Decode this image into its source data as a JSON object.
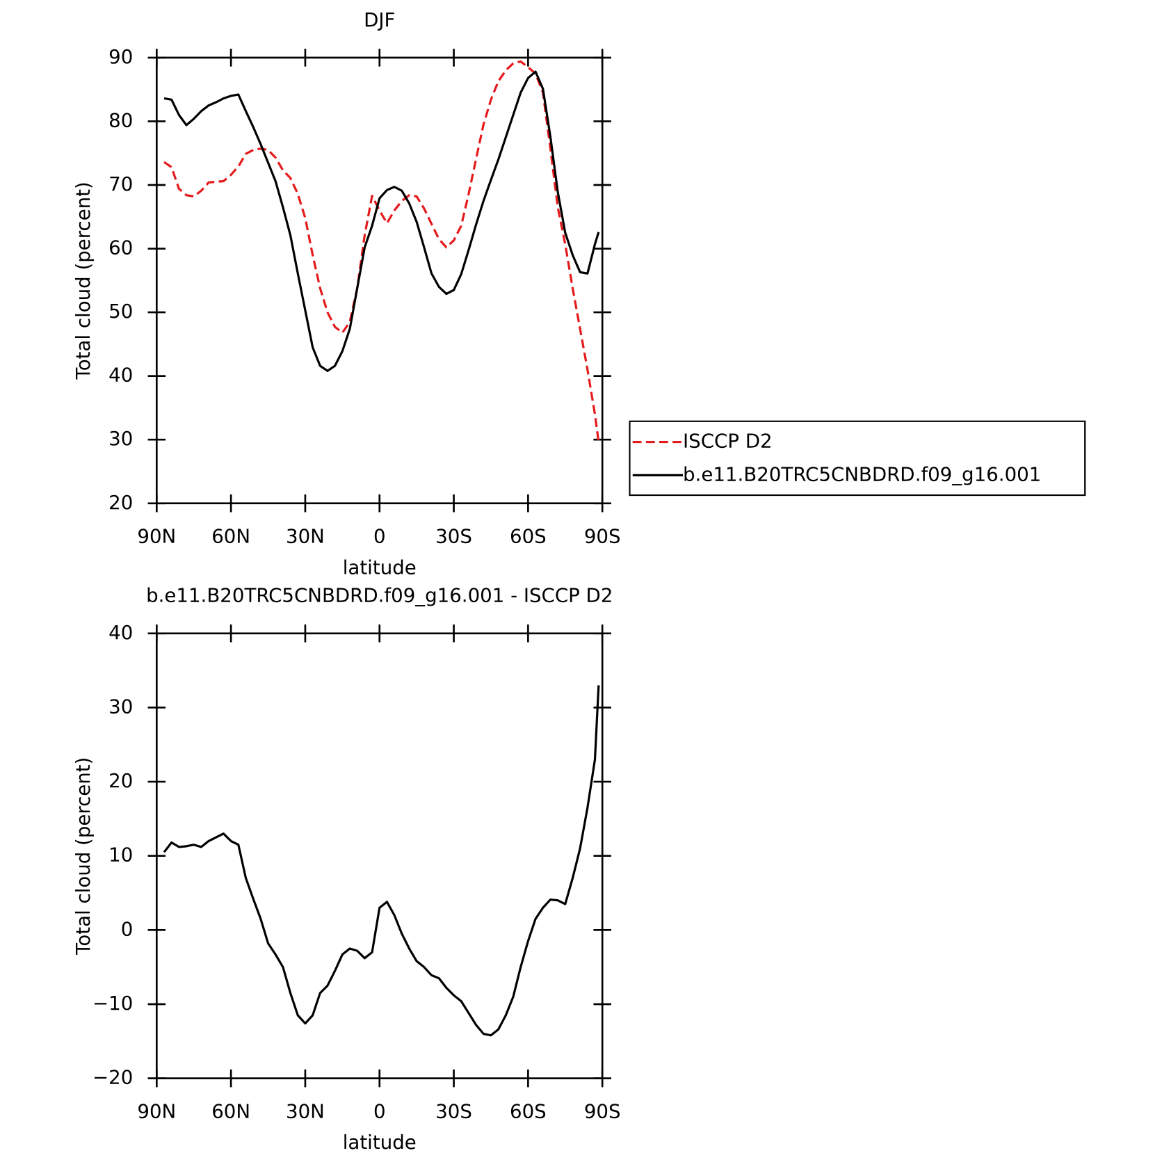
{
  "chart_data": [
    {
      "type": "line",
      "title": "DJF",
      "xlabel": "latitude",
      "ylabel": "Total cloud (percent)",
      "x": [
        87,
        84,
        81,
        78,
        75,
        72,
        69,
        66,
        63,
        60,
        57,
        54,
        51,
        48,
        45,
        42,
        39,
        36,
        33,
        30,
        27,
        24,
        21,
        18,
        15,
        12,
        9,
        6,
        3,
        0,
        -3,
        -6,
        -9,
        -12,
        -15,
        -18,
        -21,
        -24,
        -27,
        -30,
        -33,
        -36,
        -39,
        -42,
        -45,
        -48,
        -51,
        -54,
        -57,
        -60,
        -63,
        -66,
        -69,
        -72,
        -75,
        -78,
        -81,
        -84,
        -87,
        -88.5
      ],
      "xlim": [
        90,
        -90
      ],
      "xticks": [
        {
          "value": 90,
          "label": "90N"
        },
        {
          "value": 60,
          "label": "60N"
        },
        {
          "value": 30,
          "label": "30N"
        },
        0,
        {
          "value": -30,
          "label": "30S"
        },
        {
          "value": -60,
          "label": "60S"
        },
        {
          "value": -90,
          "label": "90S"
        }
      ],
      "ylim": [
        20,
        90
      ],
      "yticks": [
        20,
        30,
        40,
        50,
        60,
        70,
        80,
        90
      ],
      "series": [
        {
          "name": "ISCCP D2",
          "color": "#e41a1c",
          "dashed": true,
          "values": [
            73.6,
            72.8,
            69.4,
            68.4,
            68.2,
            69.1,
            70.4,
            70.5,
            70.6,
            71.6,
            72.9,
            74.9,
            75.5,
            75.7,
            75.5,
            74.3,
            72.3,
            71.1,
            68.6,
            64.8,
            59.0,
            53.8,
            50.0,
            47.7,
            46.8,
            48.5,
            53.8,
            62.1,
            68.3,
            66.0,
            64.0,
            66.0,
            67.5,
            68.4,
            68.2,
            66.3,
            63.9,
            61.5,
            60.2,
            61.3,
            63.6,
            68.6,
            74.1,
            79.5,
            83.4,
            86.3,
            88.0,
            89.1,
            89.4,
            88.5,
            87.5,
            84.5,
            75.8,
            66.5,
            60.7,
            53.8,
            47.4,
            41.0,
            34.0,
            29.6
          ]
        },
        {
          "name": "b.e11.B20TRC5CNBDRD.f09_g16.001",
          "color": "#000000",
          "dashed": false,
          "values": [
            83.6,
            83.4,
            81.0,
            79.4,
            80.4,
            81.6,
            82.5,
            83.0,
            83.6,
            84.0,
            84.2,
            81.6,
            79.1,
            76.4,
            73.5,
            70.6,
            66.5,
            62.1,
            56.1,
            50.3,
            44.5,
            41.6,
            40.8,
            41.6,
            43.9,
            47.4,
            53.8,
            60.2,
            63.6,
            67.9,
            69.2,
            69.7,
            69.1,
            67.1,
            64.2,
            60.2,
            56.1,
            54.0,
            52.9,
            53.5,
            56.0,
            59.8,
            63.8,
            67.5,
            70.8,
            74.0,
            77.5,
            81.0,
            84.5,
            86.8,
            87.8,
            85.1,
            77.6,
            68.9,
            62.5,
            59.0,
            56.3,
            56.1,
            60.7,
            62.6
          ]
        }
      ]
    },
    {
      "type": "line",
      "title": "b.e11.B20TRC5CNBDRD.f09_g16.001 - ISCCP D2",
      "xlabel": "latitude",
      "ylabel": "Total cloud (percent)",
      "x": [
        87,
        84,
        81,
        78,
        75,
        72,
        69,
        66,
        63,
        60,
        57,
        54,
        51,
        48,
        45,
        42,
        39,
        36,
        33,
        30,
        27,
        24,
        21,
        18,
        15,
        12,
        9,
        6,
        3,
        0,
        -3,
        -6,
        -9,
        -12,
        -15,
        -18,
        -21,
        -24,
        -27,
        -30,
        -33,
        -36,
        -39,
        -42,
        -45,
        -48,
        -51,
        -54,
        -57,
        -60,
        -63,
        -66,
        -69,
        -72,
        -75,
        -78,
        -81,
        -84,
        -87,
        -88.5
      ],
      "xlim": [
        90,
        -90
      ],
      "xticks": [
        {
          "value": 90,
          "label": "90N"
        },
        {
          "value": 60,
          "label": "60N"
        },
        {
          "value": 30,
          "label": "30N"
        },
        0,
        {
          "value": -30,
          "label": "30S"
        },
        {
          "value": -60,
          "label": "60S"
        },
        {
          "value": -90,
          "label": "90S"
        }
      ],
      "ylim": [
        -20,
        40
      ],
      "yticks": [
        {
          "value": -20,
          "label": "−20"
        },
        {
          "value": -10,
          "label": "−10"
        },
        0,
        10,
        20,
        30,
        40
      ],
      "series": [
        {
          "color": "#000000",
          "dashed": false,
          "values": [
            10.5,
            11.8,
            11.2,
            11.3,
            11.5,
            11.2,
            12.0,
            12.5,
            13.0,
            12.0,
            11.5,
            7.0,
            4.2,
            1.5,
            -1.8,
            -3.3,
            -5.0,
            -8.5,
            -11.5,
            -12.6,
            -11.5,
            -8.5,
            -7.5,
            -5.5,
            -3.3,
            -2.5,
            -2.8,
            -3.8,
            -3.0,
            3.0,
            3.8,
            2.0,
            -0.5,
            -2.5,
            -4.2,
            -5.0,
            -6.1,
            -6.5,
            -7.8,
            -8.8,
            -9.6,
            -11.2,
            -12.8,
            -14.0,
            -14.2,
            -13.4,
            -11.5,
            -9.0,
            -5.0,
            -1.5,
            1.5,
            3.0,
            4.1,
            4.0,
            3.5,
            7.0,
            11.0,
            16.5,
            23.0,
            33.0
          ]
        }
      ]
    }
  ]
}
